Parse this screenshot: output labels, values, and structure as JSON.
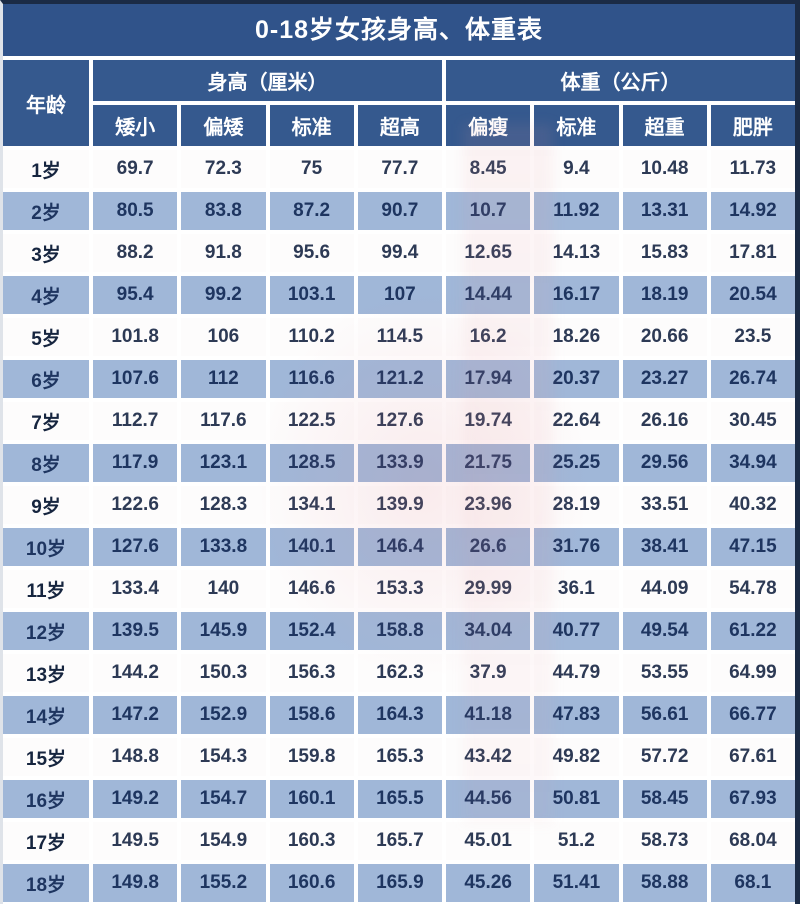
{
  "title": "0-18岁女孩身高、体重表",
  "chart_data": {
    "type": "table",
    "title": "0-18岁女孩身高、体重表",
    "age_label": "年龄",
    "groups": [
      "身高（厘米）",
      "体重（公斤）"
    ],
    "columns": [
      "矮小",
      "偏矮",
      "标准",
      "超高",
      "偏瘦",
      "标准",
      "超重",
      "肥胖"
    ],
    "rows": [
      {
        "age": "1岁",
        "height": [
          "69.7",
          "72.3",
          "75",
          "77.7"
        ],
        "weight": [
          "8.45",
          "9.4",
          "10.48",
          "11.73"
        ]
      },
      {
        "age": "2岁",
        "height": [
          "80.5",
          "83.8",
          "87.2",
          "90.7"
        ],
        "weight": [
          "10.7",
          "11.92",
          "13.31",
          "14.92"
        ]
      },
      {
        "age": "3岁",
        "height": [
          "88.2",
          "91.8",
          "95.6",
          "99.4"
        ],
        "weight": [
          "12.65",
          "14.13",
          "15.83",
          "17.81"
        ]
      },
      {
        "age": "4岁",
        "height": [
          "95.4",
          "99.2",
          "103.1",
          "107"
        ],
        "weight": [
          "14.44",
          "16.17",
          "18.19",
          "20.54"
        ]
      },
      {
        "age": "5岁",
        "height": [
          "101.8",
          "106",
          "110.2",
          "114.5"
        ],
        "weight": [
          "16.2",
          "18.26",
          "20.66",
          "23.5"
        ]
      },
      {
        "age": "6岁",
        "height": [
          "107.6",
          "112",
          "116.6",
          "121.2"
        ],
        "weight": [
          "17.94",
          "20.37",
          "23.27",
          "26.74"
        ]
      },
      {
        "age": "7岁",
        "height": [
          "112.7",
          "117.6",
          "122.5",
          "127.6"
        ],
        "weight": [
          "19.74",
          "22.64",
          "26.16",
          "30.45"
        ]
      },
      {
        "age": "8岁",
        "height": [
          "117.9",
          "123.1",
          "128.5",
          "133.9"
        ],
        "weight": [
          "21.75",
          "25.25",
          "29.56",
          "34.94"
        ]
      },
      {
        "age": "9岁",
        "height": [
          "122.6",
          "128.3",
          "134.1",
          "139.9"
        ],
        "weight": [
          "23.96",
          "28.19",
          "33.51",
          "40.32"
        ]
      },
      {
        "age": "10岁",
        "height": [
          "127.6",
          "133.8",
          "140.1",
          "146.4"
        ],
        "weight": [
          "26.6",
          "31.76",
          "38.41",
          "47.15"
        ]
      },
      {
        "age": "11岁",
        "height": [
          "133.4",
          "140",
          "146.6",
          "153.3"
        ],
        "weight": [
          "29.99",
          "36.1",
          "44.09",
          "54.78"
        ]
      },
      {
        "age": "12岁",
        "height": [
          "139.5",
          "145.9",
          "152.4",
          "158.8"
        ],
        "weight": [
          "34.04",
          "40.77",
          "49.54",
          "61.22"
        ]
      },
      {
        "age": "13岁",
        "height": [
          "144.2",
          "150.3",
          "156.3",
          "162.3"
        ],
        "weight": [
          "37.9",
          "44.79",
          "53.55",
          "64.99"
        ]
      },
      {
        "age": "14岁",
        "height": [
          "147.2",
          "152.9",
          "158.6",
          "164.3"
        ],
        "weight": [
          "41.18",
          "47.83",
          "56.61",
          "66.77"
        ]
      },
      {
        "age": "15岁",
        "height": [
          "148.8",
          "154.3",
          "159.8",
          "165.3"
        ],
        "weight": [
          "43.42",
          "49.82",
          "57.72",
          "67.61"
        ]
      },
      {
        "age": "16岁",
        "height": [
          "149.2",
          "154.7",
          "160.1",
          "165.5"
        ],
        "weight": [
          "44.56",
          "50.81",
          "58.45",
          "67.93"
        ]
      },
      {
        "age": "17岁",
        "height": [
          "149.5",
          "154.9",
          "160.3",
          "165.7"
        ],
        "weight": [
          "45.01",
          "51.2",
          "58.73",
          "68.04"
        ]
      },
      {
        "age": "18岁",
        "height": [
          "149.8",
          "155.2",
          "160.6",
          "165.9"
        ],
        "weight": [
          "45.26",
          "51.41",
          "58.88",
          "68.1"
        ]
      }
    ],
    "colors": {
      "outer_border": "#1b2b45",
      "title_bg": "#30538a",
      "header_bg": "#35598e",
      "header_text": "#ffffff",
      "alt_row_bg": "#a0b7d8",
      "row_bg": "#fdfcfc",
      "data_text": "#22395f"
    },
    "layout": {
      "grid": "white 4px gaps between cells",
      "row_striping": "odd rows white, even rows light blue"
    }
  }
}
